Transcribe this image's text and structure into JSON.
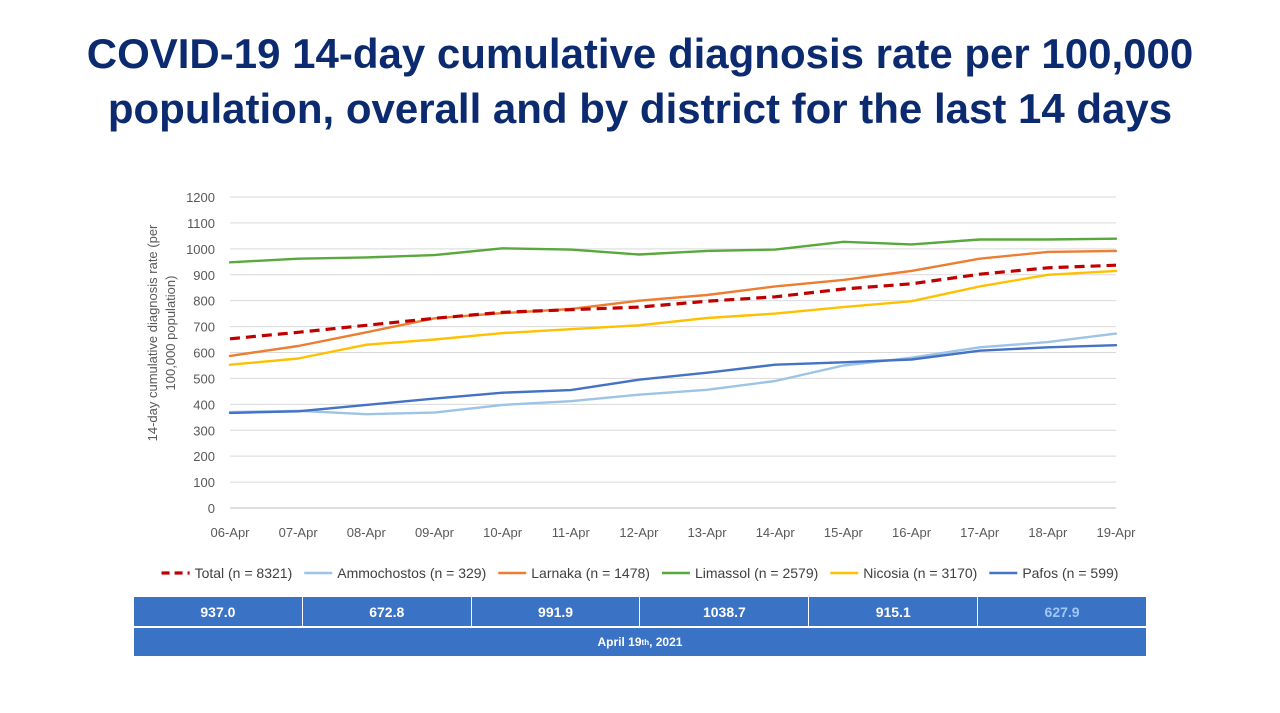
{
  "title": {
    "line1": "COVID-19 14-day cumulative diagnosis rate per 100,000",
    "line2": "population, overall and by district for the last 14 days"
  },
  "chart_data": {
    "type": "line",
    "ylabel_line1": "14-day cumulative diagnosis rate (per",
    "ylabel_line2": "100,000 population)",
    "ylim": [
      0,
      1200
    ],
    "yticks": [
      0,
      100,
      200,
      300,
      400,
      500,
      600,
      700,
      800,
      900,
      1000,
      1100,
      1200
    ],
    "grid": true,
    "legend_position": "bottom",
    "categories": [
      "06-Apr",
      "07-Apr",
      "08-Apr",
      "09-Apr",
      "10-Apr",
      "11-Apr",
      "12-Apr",
      "13-Apr",
      "14-Apr",
      "15-Apr",
      "16-Apr",
      "17-Apr",
      "18-Apr",
      "19-Apr"
    ],
    "series": [
      {
        "name": "Total (n = 8321)",
        "color": "#c00000",
        "dashed": true,
        "values": [
          653,
          678,
          705,
          732,
          755,
          765,
          775,
          798,
          815,
          845,
          865,
          902,
          927,
          937
        ]
      },
      {
        "name": "Ammochostos (n = 329)",
        "color": "#9dc3e6",
        "dashed": false,
        "values": [
          370,
          375,
          362,
          368,
          398,
          412,
          437,
          456,
          490,
          550,
          580,
          620,
          640,
          673
        ]
      },
      {
        "name": "Larnaka (n = 1478)",
        "color": "#ed7d31",
        "dashed": false,
        "values": [
          587,
          625,
          678,
          732,
          752,
          768,
          800,
          822,
          855,
          880,
          915,
          962,
          988,
          992
        ]
      },
      {
        "name": "Limassol (n = 2579)",
        "color": "#59a83b",
        "dashed": false,
        "values": [
          948,
          962,
          967,
          976,
          1002,
          997,
          978,
          992,
          997,
          1027,
          1017,
          1036,
          1036,
          1039
        ]
      },
      {
        "name": "Nicosia (n = 3170)",
        "color": "#ffc000",
        "dashed": false,
        "values": [
          553,
          577,
          630,
          650,
          675,
          690,
          705,
          733,
          750,
          775,
          798,
          855,
          900,
          915
        ]
      },
      {
        "name": "Pafos (n = 599)",
        "color": "#4472c4",
        "dashed": false,
        "values": [
          367,
          373,
          398,
          422,
          445,
          455,
          495,
          522,
          553,
          562,
          573,
          607,
          620,
          628
        ]
      }
    ]
  },
  "summary": {
    "values": [
      "937.0",
      "672.8",
      "991.9",
      "1038.7",
      "915.1",
      "627.9"
    ],
    "date_main": "April 19",
    "date_sup": "th",
    "date_year": ", 2021"
  }
}
